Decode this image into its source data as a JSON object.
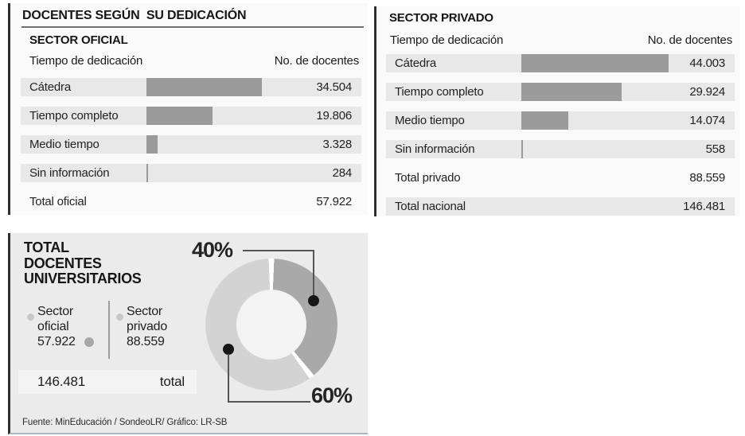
{
  "title": "DOCENTES SEGÚN  SU DEDICACIÓN",
  "oficial": {
    "section_title": "SECTOR OFICIAL",
    "col_time": "Tiempo de dedicación",
    "col_count": "No. de docentes",
    "rows": [
      {
        "label": "Cátedra",
        "value": "34.504"
      },
      {
        "label": "Tiempo completo",
        "value": "19.806"
      },
      {
        "label": "Medio tiempo",
        "value": "3.328"
      },
      {
        "label": "Sin información",
        "value": "284"
      }
    ],
    "totals": [
      {
        "label": "Total oficial",
        "value": "57.922",
        "striped": false
      }
    ]
  },
  "privado": {
    "section_title": "SECTOR PRIVADO",
    "col_time": "Tiempo de dedicación",
    "col_count": "No. de docentes",
    "rows": [
      {
        "label": "Cátedra",
        "value": "44.003"
      },
      {
        "label": "Tiempo completo",
        "value": "29.924"
      },
      {
        "label": "Medio tiempo",
        "value": "14.074"
      },
      {
        "label": "Sin información",
        "value": "558"
      }
    ],
    "totals": [
      {
        "label": "Total privado",
        "value": "88.559",
        "striped": false
      },
      {
        "label": "Total nacional",
        "value": "146.481",
        "striped": true
      }
    ]
  },
  "summary": {
    "title_lines": [
      "TOTAL",
      "DOCENTES",
      "UNIVERSITARIOS"
    ],
    "legend": [
      {
        "line1": "Sector",
        "line2": "oficial",
        "value": "57.922"
      },
      {
        "line1": "Sector",
        "line2": "privado",
        "value": "88.559"
      }
    ],
    "total_value": "146.481",
    "total_label": "total",
    "donut_labels": {
      "oficial": "40%",
      "privado": "60%"
    },
    "source": "Fuente:  MinEducación / SondeoLR/ Gráfico: LR-SB"
  },
  "colors": {
    "bar": "#9b9b9b",
    "stripe": "#e8e8e8",
    "panel_bg": "#fafafa",
    "summary_bg": "#ebebeb",
    "total_box_bg": "#f3f3f3",
    "accent_border": "#2f2f2f",
    "donut_dark": "#a9a9a9",
    "donut_light": "#d3d3d3"
  },
  "chart_data": [
    {
      "type": "bar",
      "title": "Sector oficial — Docentes según su dedicación",
      "orientation": "horizontal",
      "categories": [
        "Cátedra",
        "Tiempo completo",
        "Medio tiempo",
        "Sin información"
      ],
      "values": [
        34504,
        19806,
        3328,
        284
      ],
      "total": 57922,
      "xlabel": "No. de docentes",
      "ylabel": "Tiempo de dedicación"
    },
    {
      "type": "bar",
      "title": "Sector privado — Docentes según su dedicación",
      "orientation": "horizontal",
      "categories": [
        "Cátedra",
        "Tiempo completo",
        "Medio tiempo",
        "Sin información"
      ],
      "values": [
        44003,
        29924,
        14074,
        558
      ],
      "total": 88559,
      "total_nacional": 146481,
      "xlabel": "No. de docentes",
      "ylabel": "Tiempo de dedicación"
    },
    {
      "type": "pie",
      "donut": true,
      "title": "Total docentes universitarios",
      "categories": [
        "Sector oficial",
        "Sector privado"
      ],
      "values": [
        57922,
        88559
      ],
      "percent_labels": [
        "40%",
        "60%"
      ],
      "total": 146481,
      "legend_position": "left"
    }
  ]
}
